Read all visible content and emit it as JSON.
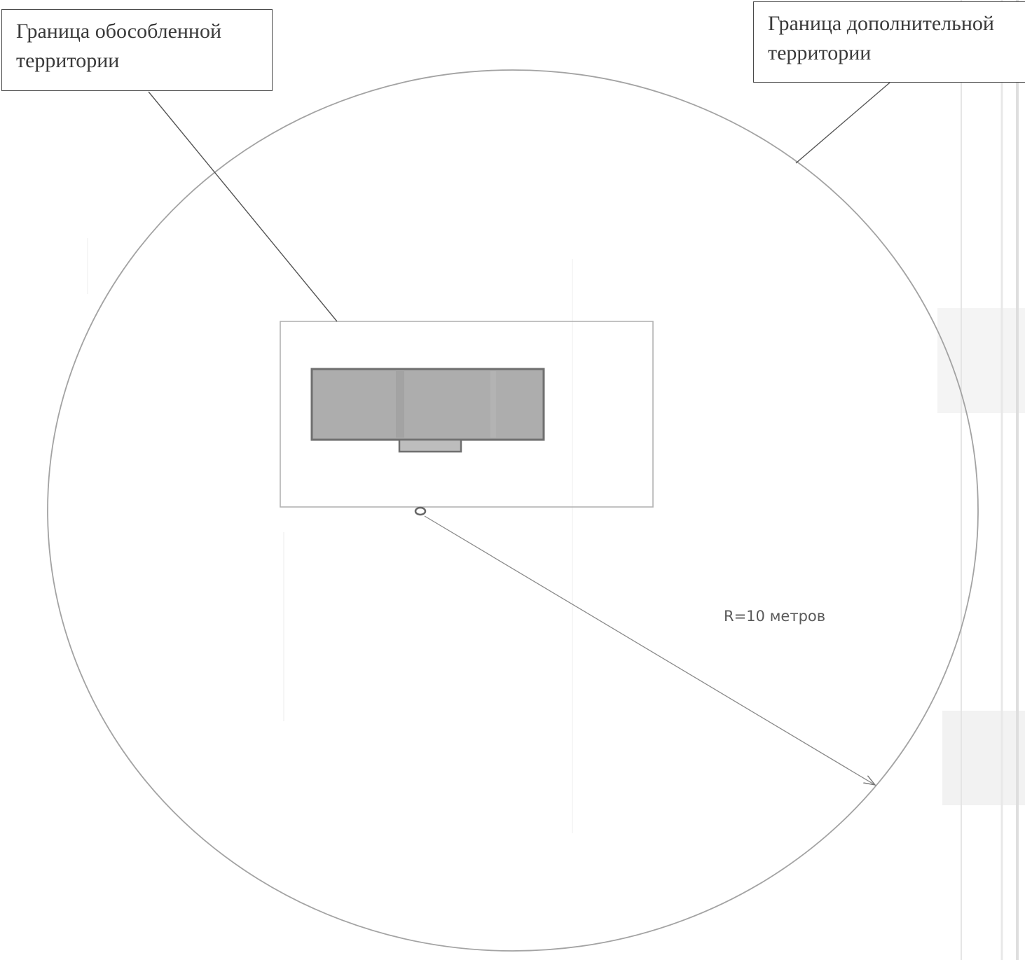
{
  "labels": {
    "isolated_territory": "Граница обособленной\nтерритории",
    "additional_territory": "Граница дополнительной\nтерритории",
    "radius": "R=10 метров"
  },
  "colors": {
    "background": "#ffffff",
    "outline": "#9a9a9a",
    "leader_line": "#555555",
    "building_fill": "#a8a8a8",
    "building_stroke": "#6f6f6f",
    "text": "#3a3a3a"
  }
}
